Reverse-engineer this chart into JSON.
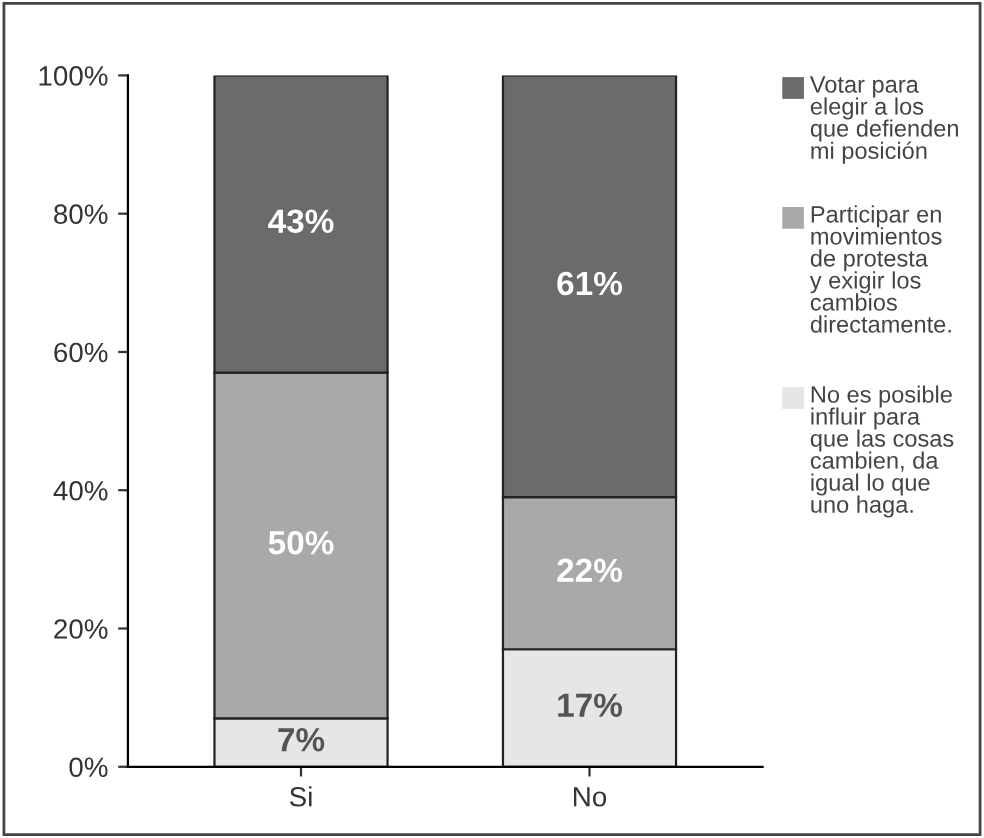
{
  "chart_data": {
    "type": "bar",
    "stacked": true,
    "categories": [
      "Si",
      "No"
    ],
    "series": [
      {
        "name": "No es posible\ninfluir para\nque las cosas\ncambien, da\nigual lo que\nuno haga.",
        "color": "#e6e6e8",
        "values": [
          7,
          17
        ],
        "value_labels": [
          "7%",
          "17%"
        ]
      },
      {
        "name": "Participar en\nmovimientos\nde protesta\ny exigir los\ncambios\ndirectamente.",
        "color": "#a9a9ab",
        "values": [
          50,
          22
        ],
        "value_labels": [
          "50%",
          "22%"
        ]
      },
      {
        "name": "Votar para\nelegir a los\nque defienden\nmi posición",
        "color": "#6b6b6e",
        "values": [
          43,
          61
        ],
        "value_labels": [
          "43%",
          "61%"
        ]
      }
    ],
    "ylim": [
      0,
      100
    ],
    "yticks": [
      {
        "value": 0,
        "label": "0%"
      },
      {
        "value": 20,
        "label": "20%"
      },
      {
        "value": 40,
        "label": "40%"
      },
      {
        "value": 60,
        "label": "60%"
      },
      {
        "value": 80,
        "label": "80%"
      },
      {
        "value": 100,
        "label": "100%"
      }
    ],
    "grid": false,
    "legend": "right"
  }
}
